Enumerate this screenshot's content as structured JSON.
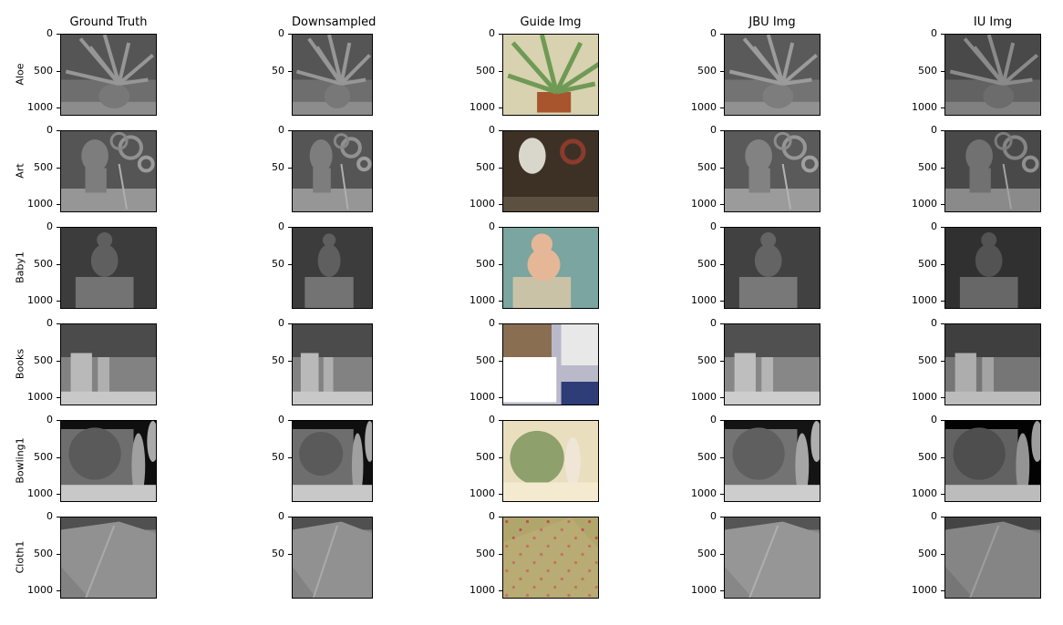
{
  "chart_data": {
    "type": "image-grid",
    "columns": [
      "Ground Truth",
      "Downsampled",
      "Guide Img",
      "JBU Img",
      "IU Img"
    ],
    "rows": [
      "Aloe",
      "Art",
      "Baby1",
      "Books",
      "Bowling1",
      "Cloth1"
    ],
    "y_ticks_full": [
      "0",
      "500",
      "1000"
    ],
    "y_ticks_down": [
      "0",
      "50"
    ],
    "image_kinds": [
      "depth",
      "depth",
      "color",
      "depth",
      "depth"
    ]
  }
}
